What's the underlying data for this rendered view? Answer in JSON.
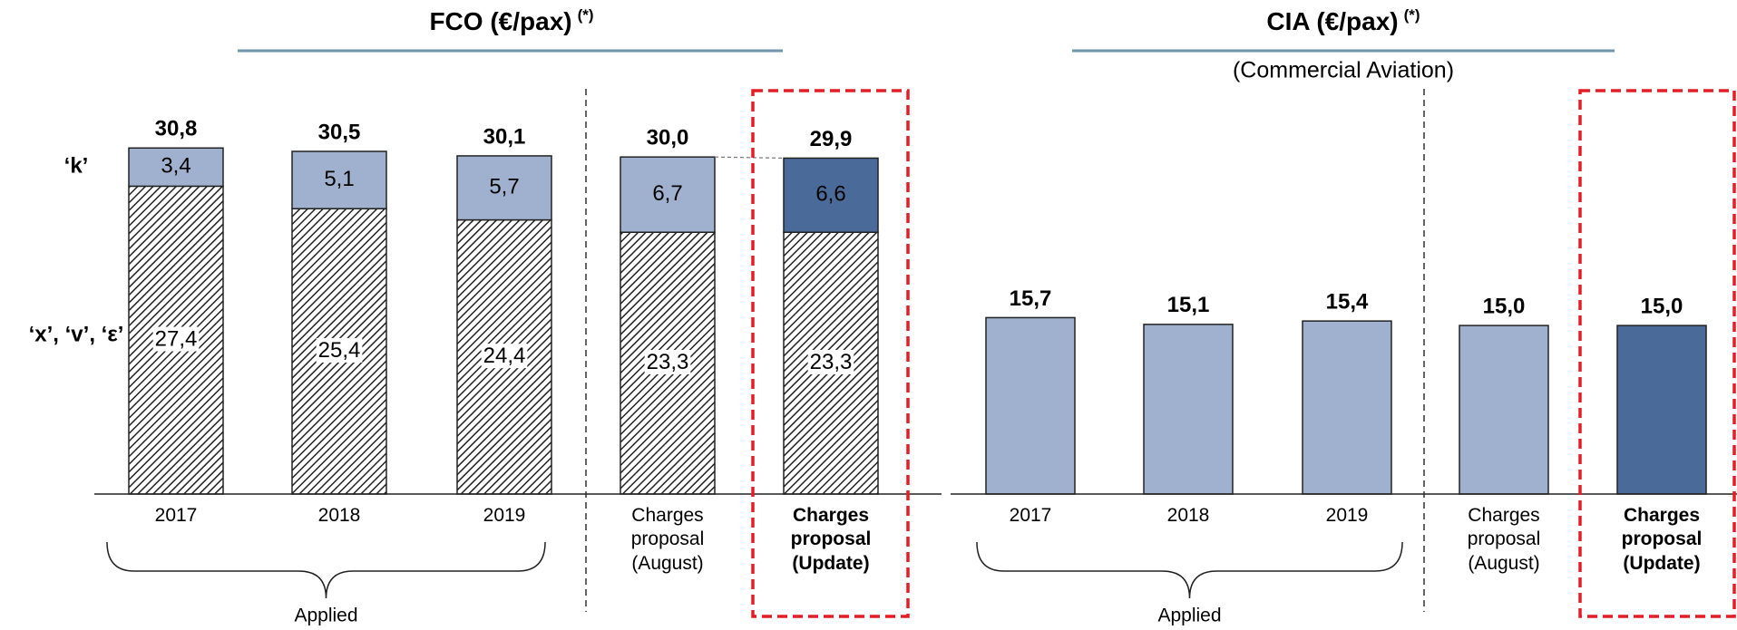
{
  "chart_data": [
    {
      "type": "bar",
      "stacked": true,
      "title": "FCO (€/pax)",
      "title_note": "(*)",
      "categories": [
        "2017",
        "2018",
        "2019",
        "Charges proposal (August)",
        "Charges proposal (Update)"
      ],
      "group_label": "Applied",
      "series": [
        {
          "name": "‘x’, ‘v’, ‘ε’",
          "hatched": true,
          "colors": [
            "#ffffff",
            "#ffffff",
            "#ffffff",
            "#ffffff",
            "#ffffff"
          ],
          "values": [
            27.4,
            25.4,
            24.4,
            23.3,
            23.3
          ],
          "value_labels": [
            "27,4",
            "25,4",
            "24,4",
            "23,3",
            "23,3"
          ]
        },
        {
          "name": "‘k’",
          "hatched": false,
          "colors": [
            "#9fb1cf",
            "#9fb1cf",
            "#9fb1cf",
            "#9fb1cf",
            "#4a6a9a"
          ],
          "values": [
            3.4,
            5.1,
            5.7,
            6.7,
            6.6
          ],
          "value_labels": [
            "3,4",
            "5,1",
            "5,7",
            "6,7",
            "6,6"
          ]
        }
      ],
      "totals": [
        30.8,
        30.5,
        30.1,
        30.0,
        29.9
      ],
      "total_labels": [
        "30,8",
        "30,5",
        "30,1",
        "30,0",
        "29,9"
      ],
      "ylim": [
        0,
        33
      ]
    },
    {
      "type": "bar",
      "stacked": false,
      "title": "CIA (€/pax)",
      "title_note": "(*)",
      "subtitle": "(Commercial Aviation)",
      "categories": [
        "2017",
        "2018",
        "2019",
        "Charges proposal (August)",
        "Charges proposal (Update)"
      ],
      "group_label": "Applied",
      "colors": [
        "#9fb1cf",
        "#9fb1cf",
        "#9fb1cf",
        "#9fb1cf",
        "#4a6a9a"
      ],
      "values": [
        15.7,
        15.1,
        15.4,
        15.0,
        15.0
      ],
      "value_labels": [
        "15,7",
        "15,1",
        "15,4",
        "15,0",
        "15,0"
      ],
      "ylim": [
        0,
        33
      ]
    }
  ]
}
